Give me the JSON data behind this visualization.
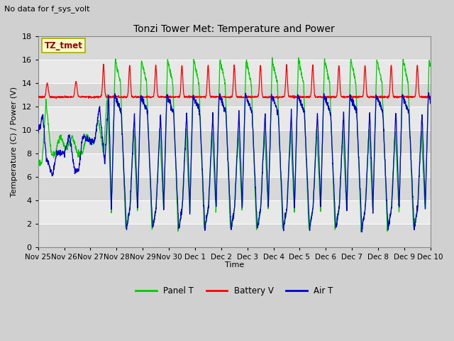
{
  "title": "Tonzi Tower Met: Temperature and Power",
  "subtitle": "No data for f_sys_volt",
  "ylabel": "Temperature (C) / Power (V)",
  "xlabel": "Time",
  "ylim": [
    0,
    18
  ],
  "legend_box_label": "TZ_tmet",
  "legend_entries": [
    "Panel T",
    "Battery V",
    "Air T"
  ],
  "legend_colors": [
    "#00ee00",
    "#ff0000",
    "#0000dd"
  ],
  "tick_labels": [
    "Nov 25",
    "Nov 26",
    "Nov 27",
    "Nov 28",
    "Nov 29",
    "Nov 30",
    "Dec 1",
    "Dec 2",
    "Dec 3",
    "Dec 4",
    "Dec 5",
    "Dec 6",
    "Dec 7",
    "Dec 8",
    "Dec 9",
    "Dec 10"
  ],
  "bg_color": "#e0e0e0",
  "plot_bg": "#e8e8e8",
  "band_dark": "#d8d8d8",
  "band_light": "#e8e8e8",
  "grid_color": "#ffffff",
  "num_days": 15
}
